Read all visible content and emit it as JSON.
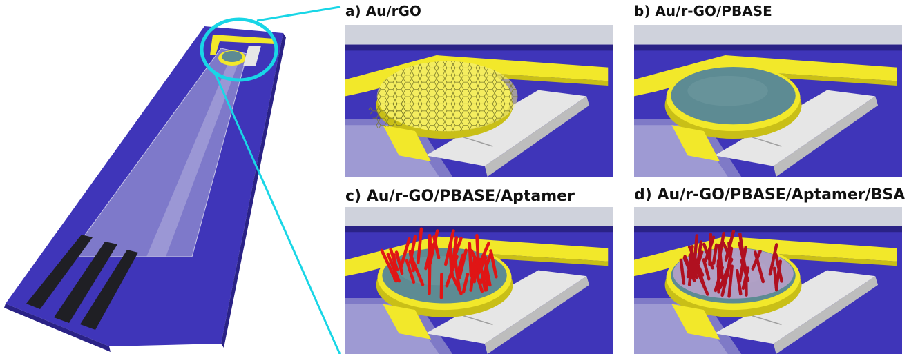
{
  "panels": [
    {
      "id": "a",
      "label": "a) Au/rGO",
      "surface": "rgo-mesh"
    },
    {
      "id": "b",
      "label": "b) Au/r-GO/PBASE",
      "surface": "pbase-film"
    },
    {
      "id": "c",
      "label": "c) Au/r-GO/PBASE/Aptamer",
      "surface": "aptamer-rods"
    },
    {
      "id": "d",
      "label": "d) Au/r-GO/PBASE/Aptamer/BSA",
      "surface": "bsa-coated-rods"
    }
  ],
  "colors": {
    "substrate": "#3f35b9",
    "substrate_dark": "#2a2286",
    "gold": "#f2e82a",
    "gold_dark": "#c9bf17",
    "silver": "#e6e6e6",
    "silver_dark": "#bdbdbd",
    "cyan": "#19d6e6",
    "contact_pad": "#1f1f24",
    "pbase": "#5d8b93",
    "aptamer": "#e01515",
    "aptamer_bsa": "#b01020",
    "bsa": "#c9a6d4",
    "background_panel": "#cfd2dc"
  }
}
